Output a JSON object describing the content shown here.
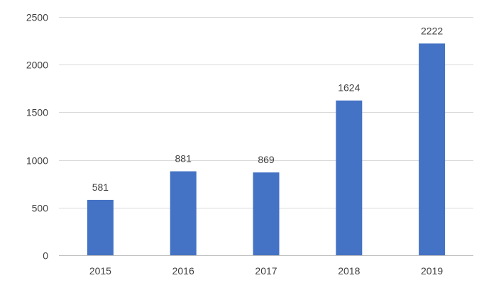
{
  "chart_data": {
    "type": "bar",
    "categories": [
      "2015",
      "2016",
      "2017",
      "2018",
      "2019"
    ],
    "values": [
      581,
      881,
      869,
      1624,
      2222
    ],
    "data_labels": [
      "581",
      "881",
      "869",
      "1624",
      "2222"
    ],
    "y_ticks": [
      0,
      500,
      1000,
      1500,
      2000,
      2500
    ],
    "ylim": [
      0,
      2500
    ],
    "grid": true,
    "legend": "none",
    "colors": {
      "bar": "#4472C4",
      "grid": "#D9D9D9",
      "axis": "#BFBFBF",
      "text": "#404040"
    }
  }
}
